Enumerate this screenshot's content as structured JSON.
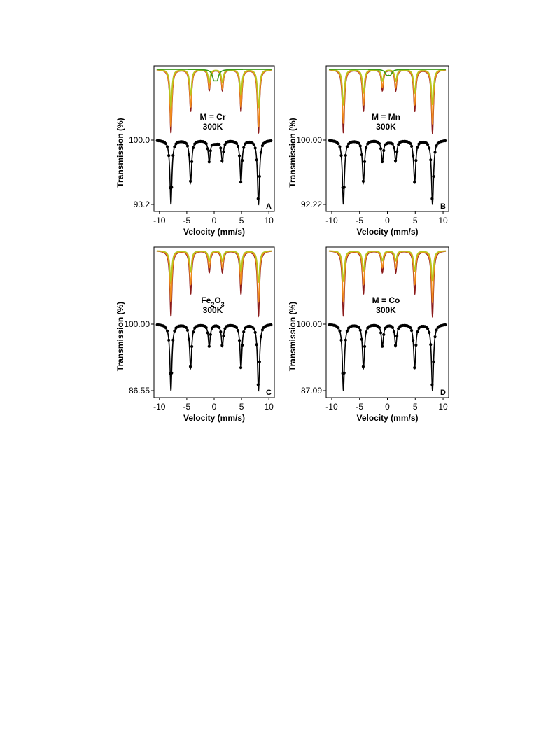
{
  "colors": {
    "dark_red": "#8b1a1a",
    "orange": "#f08a1c",
    "yellow_green": "#b5c81e",
    "green": "#3a9a1a",
    "data": "#000000"
  },
  "chart_data": [
    {
      "type": "scatter",
      "letter": "A",
      "annotation": [
        "M = Cr",
        "300K"
      ],
      "xlabel": "Velocity (mm/s)",
      "ylabel": "Transmission (%)",
      "xlim": [
        -11,
        11
      ],
      "xticks": [
        "-10",
        "-5",
        "0",
        "5",
        "10"
      ],
      "yticks": [
        "100.0",
        "93.2"
      ],
      "y_top": 100.0,
      "y_bottom": 93.2,
      "sextets": [
        {
          "color": "dark_red",
          "lines": [
            -7.9,
            8.1
          ],
          "relative_depth": 1.0
        },
        {
          "color": "orange",
          "lines": [
            -4.3,
            4.9
          ],
          "relative_depth": 0.9
        },
        {
          "color": "yellow_green",
          "lines": [
            -0.9,
            1.5
          ],
          "relative_depth": 0.6
        }
      ],
      "doublet": {
        "color": "green",
        "lines": [
          0.0,
          0.5
        ],
        "relative_depth": 0.15
      },
      "dip_depth_percent": 6.4
    },
    {
      "type": "scatter",
      "letter": "B",
      "annotation": [
        "M = Mn",
        "300K"
      ],
      "xlabel": "Velocity (mm/s)",
      "ylabel": "Transmission (%)",
      "xlim": [
        -11,
        11
      ],
      "xticks": [
        "-10",
        "-5",
        "0",
        "5",
        "10"
      ],
      "yticks": [
        "100.00",
        "92.22"
      ],
      "y_top": 100.0,
      "y_bottom": 92.22,
      "sextets": [
        {
          "color": "dark_red",
          "lines": [
            -7.9,
            8.1
          ],
          "relative_depth": 1.0
        },
        {
          "color": "orange",
          "lines": [
            -4.3,
            4.9
          ],
          "relative_depth": 0.85
        },
        {
          "color": "yellow_green",
          "lines": [
            -0.9,
            1.5
          ],
          "relative_depth": 0.55
        }
      ],
      "doublet": {
        "color": "green",
        "lines": [
          -0.1,
          0.5
        ],
        "relative_depth": 0.08
      },
      "dip_depth_percent": 7.6
    },
    {
      "type": "scatter",
      "letter": "C",
      "annotation": [
        "Fe₂O₃",
        "300K"
      ],
      "xlabel": "Velocity (mm/s)",
      "ylabel": "Transmission (%)",
      "xlim": [
        -11,
        11
      ],
      "xticks": [
        "-10",
        "-5",
        "0",
        "5",
        "10"
      ],
      "yticks": [
        "100.00",
        "86.55"
      ],
      "y_top": 100.0,
      "y_bottom": 86.55,
      "sextets": [
        {
          "color": "dark_red",
          "lines": [
            -7.9,
            8.1
          ],
          "relative_depth": 1.0
        },
        {
          "color": "orange",
          "lines": [
            -4.3,
            4.9
          ],
          "relative_depth": 0.78
        },
        {
          "color": "yellow_green",
          "lines": [
            -0.9,
            1.5
          ],
          "relative_depth": 0.48
        }
      ],
      "doublet": null,
      "dip_depth_percent": 13.2
    },
    {
      "type": "scatter",
      "letter": "D",
      "annotation": [
        "M = Co",
        "300K"
      ],
      "xlabel": "Velocity (mm/s)",
      "ylabel": "Transmission (%)",
      "xlim": [
        -11,
        11
      ],
      "xticks": [
        "-10",
        "-5",
        "0",
        "5",
        "10"
      ],
      "yticks": [
        "100.00",
        "87.09"
      ],
      "y_top": 100.0,
      "y_bottom": 87.09,
      "sextets": [
        {
          "color": "dark_red",
          "lines": [
            -7.9,
            8.1
          ],
          "relative_depth": 1.0
        },
        {
          "color": "orange",
          "lines": [
            -4.3,
            4.9
          ],
          "relative_depth": 0.78
        },
        {
          "color": "yellow_green",
          "lines": [
            -0.9,
            1.5
          ],
          "relative_depth": 0.46
        }
      ],
      "doublet": null,
      "dip_depth_percent": 12.7
    }
  ]
}
